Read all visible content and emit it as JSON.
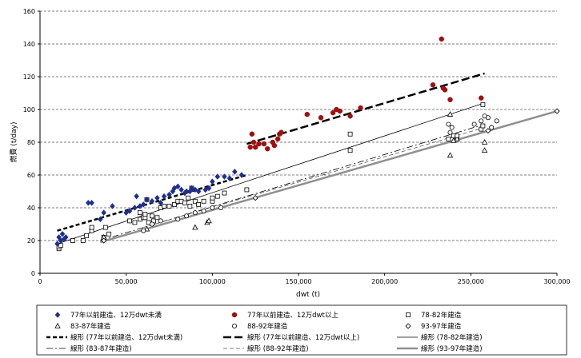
{
  "chart_data": {
    "type": "scatter",
    "xlabel": "dwt (t)",
    "ylabel": "燃費 (t/day)",
    "xlim": [
      0,
      300000
    ],
    "ylim": [
      0,
      160
    ],
    "x_ticks": [
      0,
      50000,
      100000,
      150000,
      200000,
      250000,
      300000
    ],
    "x_tick_labels": [
      "0",
      "50,000",
      "100,000",
      "150,000",
      "200,000",
      "250,000",
      "300,000"
    ],
    "y_ticks": [
      0,
      20,
      40,
      60,
      80,
      100,
      120,
      140,
      160
    ],
    "y_tick_labels": [
      "0",
      "20",
      "40",
      "60",
      "80",
      "100",
      "120",
      "140",
      "160"
    ],
    "grid": "horizontal-dashed",
    "legend_placement": "bottom",
    "series": [
      {
        "name": "77年以前建造、12万dwt未満",
        "marker": "diamond-filled",
        "color": "#1f2f8f",
        "points": [
          [
            10000,
            18
          ],
          [
            11000,
            22
          ],
          [
            12000,
            20
          ],
          [
            13000,
            24
          ],
          [
            14000,
            21
          ],
          [
            15000,
            22
          ],
          [
            28000,
            43
          ],
          [
            30000,
            43
          ],
          [
            35000,
            33
          ],
          [
            37000,
            37
          ],
          [
            42000,
            41
          ],
          [
            50000,
            37
          ],
          [
            52000,
            38
          ],
          [
            55000,
            40
          ],
          [
            56000,
            47
          ],
          [
            58000,
            41
          ],
          [
            60000,
            42
          ],
          [
            62000,
            45
          ],
          [
            65000,
            44
          ],
          [
            68000,
            46
          ],
          [
            70000,
            43
          ],
          [
            72000,
            47
          ],
          [
            75000,
            48
          ],
          [
            77000,
            50
          ],
          [
            78000,
            52
          ],
          [
            80000,
            53
          ],
          [
            82000,
            51
          ],
          [
            84000,
            49
          ],
          [
            85000,
            50
          ],
          [
            87000,
            50
          ],
          [
            88000,
            52
          ],
          [
            90000,
            51
          ],
          [
            92000,
            50
          ],
          [
            96000,
            51
          ],
          [
            98000,
            52
          ],
          [
            100000,
            56
          ],
          [
            103000,
            59
          ],
          [
            107000,
            59
          ],
          [
            110000,
            58
          ],
          [
            113000,
            62
          ],
          [
            117000,
            60
          ]
        ]
      },
      {
        "name": "77年以前建造、12万dwt以上",
        "marker": "circle-filled",
        "color": "#a01010",
        "points": [
          [
            122000,
            77
          ],
          [
            123000,
            85
          ],
          [
            124000,
            80
          ],
          [
            125000,
            77
          ],
          [
            127000,
            79
          ],
          [
            130000,
            79
          ],
          [
            132000,
            76
          ],
          [
            135000,
            80
          ],
          [
            136000,
            78
          ],
          [
            138000,
            82
          ],
          [
            139000,
            85
          ],
          [
            140000,
            86
          ],
          [
            155000,
            97
          ],
          [
            163000,
            95
          ],
          [
            170000,
            98
          ],
          [
            172000,
            100
          ],
          [
            174000,
            99
          ],
          [
            180000,
            96
          ],
          [
            186000,
            101
          ],
          [
            228000,
            115
          ],
          [
            233000,
            143
          ],
          [
            234000,
            113
          ],
          [
            235000,
            112
          ],
          [
            238000,
            106
          ],
          [
            256000,
            107
          ]
        ]
      },
      {
        "name": "78-82年建造",
        "marker": "square-open",
        "color": "#000000",
        "points": [
          [
            11000,
            15
          ],
          [
            11000,
            16
          ],
          [
            12000,
            17
          ],
          [
            19000,
            20
          ],
          [
            25000,
            20
          ],
          [
            27000,
            23
          ],
          [
            30000,
            26
          ],
          [
            30000,
            28
          ],
          [
            37000,
            22
          ],
          [
            38000,
            28
          ],
          [
            40000,
            24
          ],
          [
            52000,
            32
          ],
          [
            55000,
            31
          ],
          [
            58000,
            33
          ],
          [
            58000,
            37
          ],
          [
            60000,
            34
          ],
          [
            61000,
            34
          ],
          [
            61000,
            36
          ],
          [
            62000,
            45
          ],
          [
            63000,
            31
          ],
          [
            65000,
            35
          ],
          [
            66000,
            32
          ],
          [
            68000,
            34
          ],
          [
            70000,
            40
          ],
          [
            72000,
            41
          ],
          [
            75000,
            41
          ],
          [
            78000,
            42
          ],
          [
            80000,
            44
          ],
          [
            82000,
            44
          ],
          [
            84000,
            43
          ],
          [
            86000,
            46
          ],
          [
            87000,
            41
          ],
          [
            88000,
            52
          ],
          [
            90000,
            44
          ],
          [
            92000,
            42
          ],
          [
            95000,
            44
          ],
          [
            100000,
            44
          ],
          [
            100000,
            46
          ],
          [
            103000,
            47
          ],
          [
            107000,
            49
          ],
          [
            120000,
            51
          ],
          [
            180000,
            85
          ],
          [
            180000,
            75
          ],
          [
            237000,
            82
          ],
          [
            240000,
            84
          ],
          [
            242000,
            82
          ],
          [
            256000,
            88
          ],
          [
            257000,
            103
          ],
          [
            257000,
            90
          ]
        ]
      },
      {
        "name": "83-87年建造",
        "marker": "triangle-open",
        "color": "#000000",
        "points": [
          [
            37000,
            22
          ],
          [
            62000,
            27
          ],
          [
            90000,
            28
          ],
          [
            97000,
            31
          ],
          [
            98000,
            32
          ],
          [
            238000,
            97
          ],
          [
            238000,
            72
          ],
          [
            240000,
            81
          ],
          [
            242000,
            82
          ],
          [
            258000,
            80
          ],
          [
            258000,
            75
          ]
        ]
      },
      {
        "name": "88-92年建造",
        "marker": "circle-open",
        "color": "#000000",
        "points": [
          [
            60000,
            26
          ],
          [
            65000,
            30
          ],
          [
            70000,
            32
          ],
          [
            80000,
            33
          ],
          [
            85000,
            35
          ],
          [
            90000,
            37
          ],
          [
            95000,
            38
          ],
          [
            100000,
            40
          ],
          [
            105000,
            40
          ],
          [
            237000,
            91
          ],
          [
            238000,
            86
          ],
          [
            239000,
            89
          ],
          [
            242000,
            84
          ],
          [
            252000,
            91
          ],
          [
            256000,
            93
          ],
          [
            258000,
            96
          ],
          [
            260000,
            95
          ],
          [
            262000,
            89
          ],
          [
            265000,
            93
          ]
        ]
      },
      {
        "name": "93-97年建造",
        "marker": "diamond-open",
        "color": "#000000",
        "points": [
          [
            37000,
            20
          ],
          [
            125000,
            46
          ],
          [
            260000,
            87
          ],
          [
            300000,
            99
          ]
        ]
      }
    ],
    "trend_lines": [
      {
        "name": "線形 (77年以前建造、12万dwt未満)",
        "style": "dashed-bold",
        "color": "#000000",
        "x": [
          10000,
          120000
        ],
        "y": [
          26,
          60
        ]
      },
      {
        "name": "線形 (77年以前建造、12万dwt以上)",
        "style": "long-dash-bold",
        "color": "#000000",
        "x": [
          120000,
          258000
        ],
        "y": [
          79,
          122
        ]
      },
      {
        "name": "線形 (78-82年建造)",
        "style": "solid-thin",
        "color": "#000000",
        "x": [
          10000,
          258000
        ],
        "y": [
          18,
          104
        ]
      },
      {
        "name": "線形 (83-87年建造)",
        "style": "dash-dot",
        "color": "#000000",
        "x": [
          35000,
          258000
        ],
        "y": [
          20,
          91
        ]
      },
      {
        "name": "線形 (88-92年建造)",
        "style": "dashed-thin",
        "color": "#555555",
        "x": [
          60000,
          258000
        ],
        "y": [
          28,
          89
        ]
      },
      {
        "name": "線形 (93-97年建造)",
        "style": "solid-thick-gray",
        "color": "#909090",
        "x": [
          35000,
          300000
        ],
        "y": [
          19,
          99
        ]
      }
    ]
  }
}
